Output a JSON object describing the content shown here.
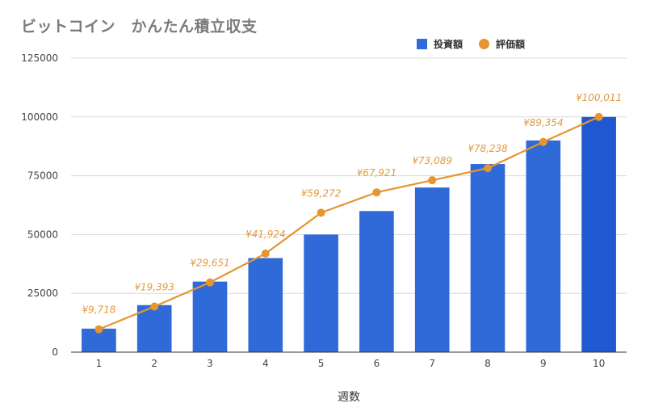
{
  "chart_data": {
    "type": "bar",
    "title": "ビットコイン　かんたん積立収支",
    "xlabel": "週数",
    "ylabel": "",
    "categories": [
      "1",
      "2",
      "3",
      "4",
      "5",
      "6",
      "7",
      "8",
      "9",
      "10"
    ],
    "ylim": [
      0,
      125000
    ],
    "yticks": [
      "0",
      "25000",
      "50000",
      "75000",
      "100000",
      "125000"
    ],
    "legend_position": "top-right",
    "grid": true,
    "series": [
      {
        "name": "投資額",
        "type": "bar",
        "color": "#2f6ad8",
        "values": [
          10000,
          20000,
          30000,
          40000,
          50000,
          60000,
          70000,
          80000,
          90000,
          100000
        ]
      },
      {
        "name": "評価額",
        "type": "line",
        "color": "#e6952f",
        "values": [
          9718,
          19393,
          29651,
          41924,
          59272,
          67921,
          73089,
          78238,
          89354,
          100011
        ],
        "labels": [
          "¥9,718",
          "¥19,393",
          "¥29,651",
          "¥41,924",
          "¥59,272",
          "¥67,921",
          "¥73,089",
          "¥78,238",
          "¥89,354",
          "¥100,011"
        ]
      }
    ]
  }
}
